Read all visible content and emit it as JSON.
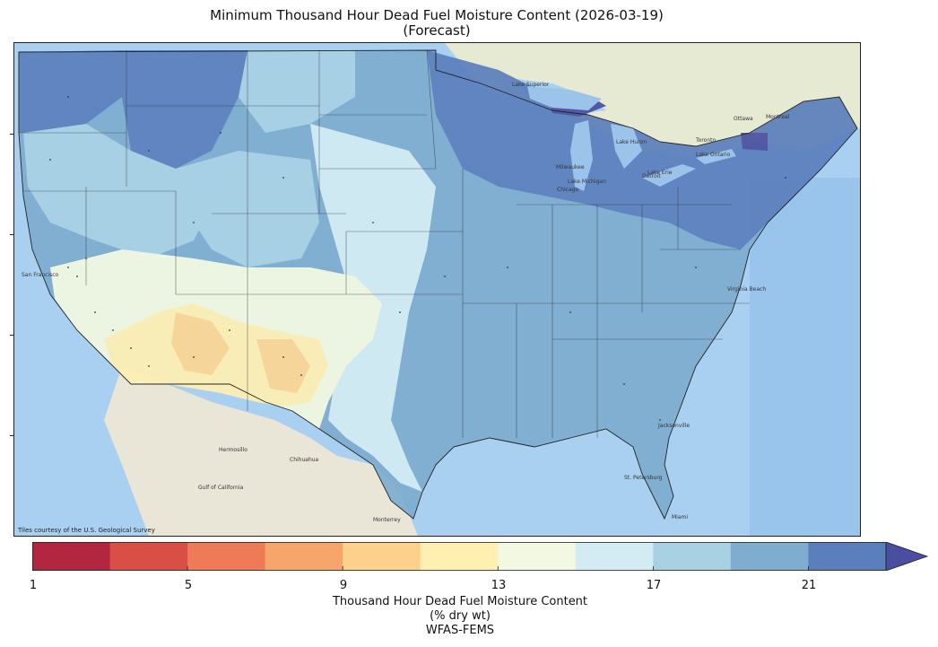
{
  "title": {
    "line1": "Minimum Thousand Hour Dead Fuel Moisture Content (2026-03-19)",
    "line2": "(Forecast)"
  },
  "map": {
    "attribution": "Tiles courtesy of the U.S. Geological Survey",
    "land_color": "#e8ecd8",
    "ocean_color": "#a9d0f0",
    "place_labels": [
      "Hermosillo",
      "Chihuahua",
      "Monterrey",
      "Gulf of California",
      "San Francisco",
      "Lake Superior",
      "Milwaukee",
      "Chicago",
      "Detroit",
      "Toronto",
      "Ottawa",
      "Montreal",
      "Lake Ontario",
      "Lake Erie",
      "Jacksonville",
      "St. Petersburg",
      "Miami",
      "Virginia Beach",
      "Lake Michigan",
      "Lake Huron"
    ]
  },
  "colorbar": {
    "min": 1,
    "max": 23,
    "step": 2,
    "extend": "max",
    "colors": [
      "#b22640",
      "#d94e45",
      "#ef7a58",
      "#f8a56c",
      "#fdd08c",
      "#fff0b2",
      "#f2f8e1",
      "#d3ecf4",
      "#a8d1e4",
      "#7eadd0",
      "#5b7fbd"
    ],
    "over_color": "#4a4ea0",
    "tick_labels": [
      "1",
      "5",
      "9",
      "13",
      "17",
      "21"
    ],
    "label_line1": "Thousand Hour Dead Fuel Moisture Content",
    "label_line2": "(% dry wt)",
    "label_line3": "WFAS-FEMS"
  }
}
